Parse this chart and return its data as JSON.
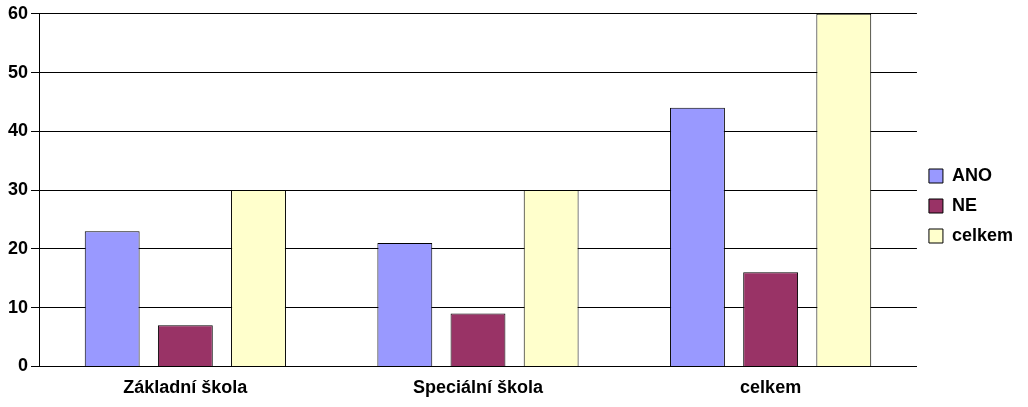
{
  "chart_data": {
    "type": "bar",
    "categories": [
      "Základní škola",
      "Speciální škola",
      "celkem"
    ],
    "series": [
      {
        "name": "ANO",
        "color": "#9999ff",
        "values": [
          23,
          21,
          44
        ]
      },
      {
        "name": "NE",
        "color": "#993366",
        "values": [
          7,
          9,
          16
        ]
      },
      {
        "name": "celkem",
        "color": "#ffffcc",
        "values": [
          30,
          30,
          60
        ]
      }
    ],
    "ylim": [
      0,
      60
    ],
    "yticks": [
      0,
      10,
      20,
      30,
      40,
      50,
      60
    ],
    "grid": "y",
    "legend": "right"
  }
}
